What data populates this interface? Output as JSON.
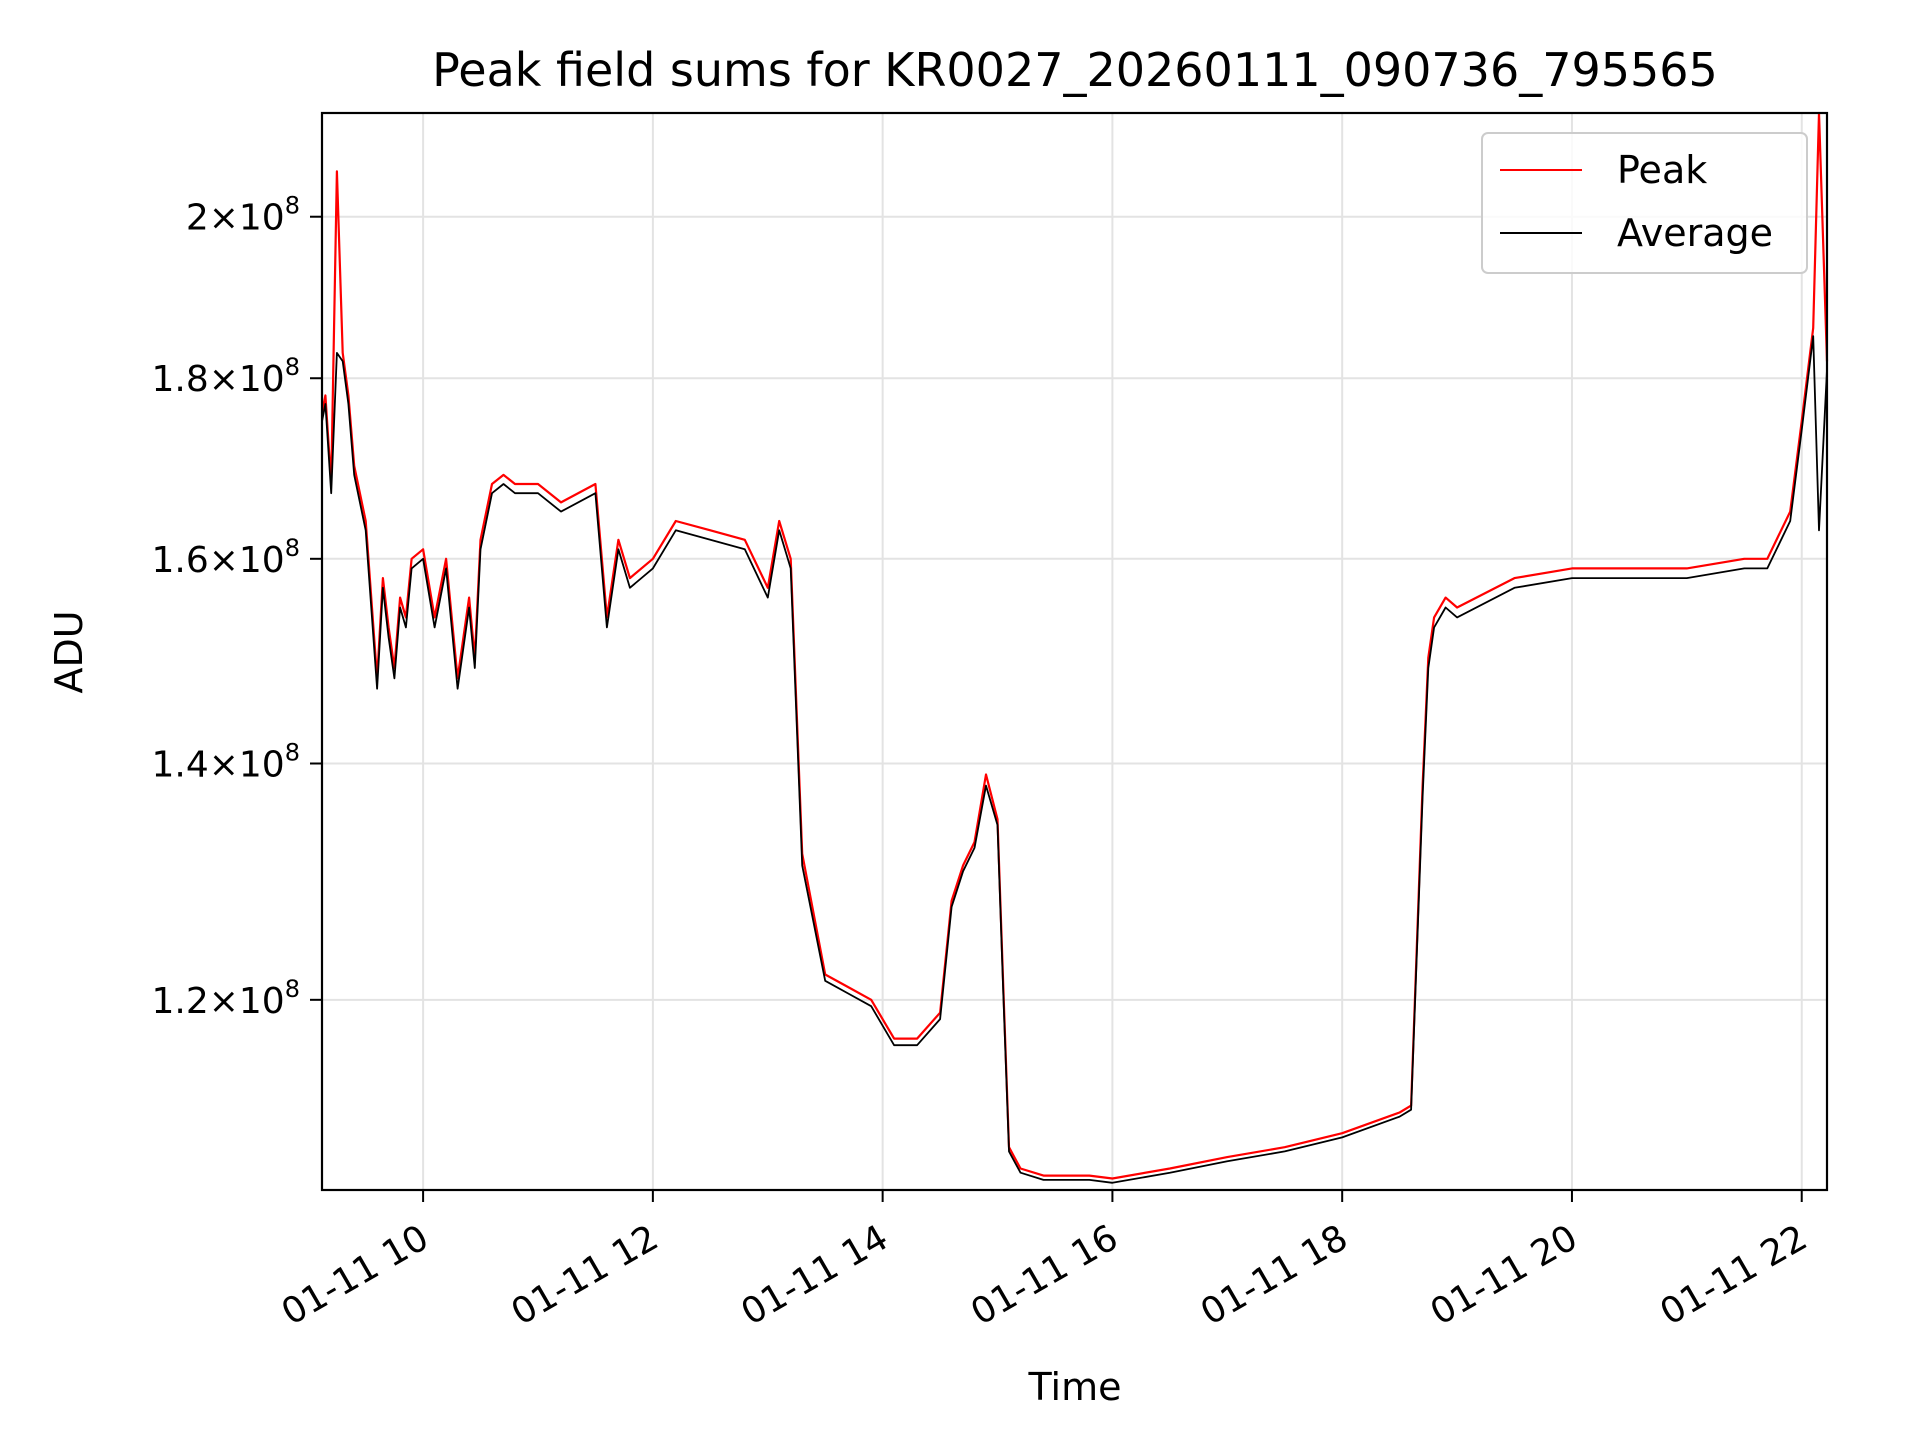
{
  "chart_data": {
    "type": "line",
    "title": "Peak field sums for KR0027_20260111_090736_795565",
    "xlabel": "Time",
    "ylabel": "ADU",
    "x_ticks": [
      "01-11 10",
      "01-11 12",
      "01-11 14",
      "01-11 16",
      "01-11 18",
      "01-11 20",
      "01-11 22"
    ],
    "x_tick_hours": [
      10,
      12,
      14,
      16,
      18,
      20,
      22
    ],
    "xlim_hours": [
      9.12,
      22.22
    ],
    "y_scale": "log",
    "ylim": [
      106000000,
      214000000
    ],
    "y_ticks": [
      {
        "value": 120000000,
        "mantissa": "1.2",
        "base": "10",
        "exponent": "8"
      },
      {
        "value": 140000000,
        "mantissa": "1.4",
        "base": "10",
        "exponent": "8"
      },
      {
        "value": 160000000,
        "mantissa": "1.6",
        "base": "10",
        "exponent": "8"
      },
      {
        "value": 180000000,
        "mantissa": "1.8",
        "base": "10",
        "exponent": "8"
      },
      {
        "value": 200000000,
        "mantissa": "2",
        "base": "10",
        "exponent": "8"
      }
    ],
    "grid": true,
    "legend_position": "top-right",
    "series": [
      {
        "name": "Peak",
        "color": "#ff0000"
      },
      {
        "name": "Average",
        "color": "#000000"
      }
    ],
    "x_hours": [
      9.12,
      9.15,
      9.2,
      9.25,
      9.3,
      9.35,
      9.4,
      9.5,
      9.6,
      9.65,
      9.7,
      9.75,
      9.8,
      9.85,
      9.9,
      10.0,
      10.1,
      10.2,
      10.3,
      10.4,
      10.45,
      10.5,
      10.6,
      10.7,
      10.8,
      11.0,
      11.2,
      11.5,
      11.6,
      11.7,
      11.8,
      12.0,
      12.2,
      12.5,
      12.8,
      13.0,
      13.1,
      13.2,
      13.3,
      13.5,
      13.7,
      13.9,
      14.1,
      14.3,
      14.5,
      14.6,
      14.7,
      14.8,
      14.9,
      15.0,
      15.05,
      15.1,
      15.2,
      15.4,
      15.6,
      15.8,
      16.0,
      16.5,
      17.0,
      17.5,
      18.0,
      18.5,
      18.6,
      18.7,
      18.75,
      18.8,
      18.9,
      19.0,
      19.5,
      20.0,
      20.5,
      21.0,
      21.5,
      21.7,
      21.9,
      22.0,
      22.1,
      22.15,
      22.22
    ],
    "peak": [
      176000000,
      178000000,
      168000000,
      206000000,
      183000000,
      178000000,
      170000000,
      164000000,
      148000000,
      158000000,
      153000000,
      149000000,
      156000000,
      154000000,
      160000000,
      161000000,
      154000000,
      160000000,
      148000000,
      156000000,
      150000000,
      162000000,
      168000000,
      169000000,
      168000000,
      168000000,
      166000000,
      168000000,
      154000000,
      162000000,
      158000000,
      160000000,
      164000000,
      163000000,
      162000000,
      157000000,
      164000000,
      160000000,
      132000000,
      122000000,
      121000000,
      120000000,
      117000000,
      117000000,
      119000000,
      128000000,
      131000000,
      133000000,
      139000000,
      135000000,
      121000000,
      109000000,
      107500000,
      107000000,
      107000000,
      107000000,
      106800000,
      107500000,
      108300000,
      109000000,
      110000000,
      111500000,
      112000000,
      138000000,
      150000000,
      154000000,
      156000000,
      155000000,
      158000000,
      159000000,
      159000000,
      159000000,
      160000000,
      160000000,
      165000000,
      175000000,
      186000000,
      214000000,
      182000000
    ],
    "average": [
      175000000,
      177000000,
      167000000,
      183000000,
      182000000,
      177000000,
      169000000,
      163000000,
      147000000,
      157000000,
      152000000,
      148000000,
      155000000,
      153000000,
      159000000,
      160000000,
      153000000,
      159000000,
      147000000,
      155000000,
      149000000,
      161000000,
      167000000,
      168000000,
      167000000,
      167000000,
      165000000,
      167000000,
      153000000,
      161000000,
      157000000,
      159000000,
      163000000,
      162000000,
      161000000,
      156000000,
      163000000,
      159000000,
      131000000,
      121500000,
      120500000,
      119500000,
      116500000,
      116500000,
      118500000,
      127500000,
      130500000,
      132500000,
      138000000,
      134500000,
      120500000,
      108700000,
      107200000,
      106700000,
      106700000,
      106700000,
      106500000,
      107200000,
      108000000,
      108700000,
      109700000,
      111200000,
      111700000,
      137000000,
      149000000,
      153000000,
      155000000,
      154000000,
      157000000,
      158000000,
      158000000,
      158000000,
      159000000,
      159000000,
      164000000,
      174000000,
      185000000,
      163000000,
      181000000
    ]
  }
}
